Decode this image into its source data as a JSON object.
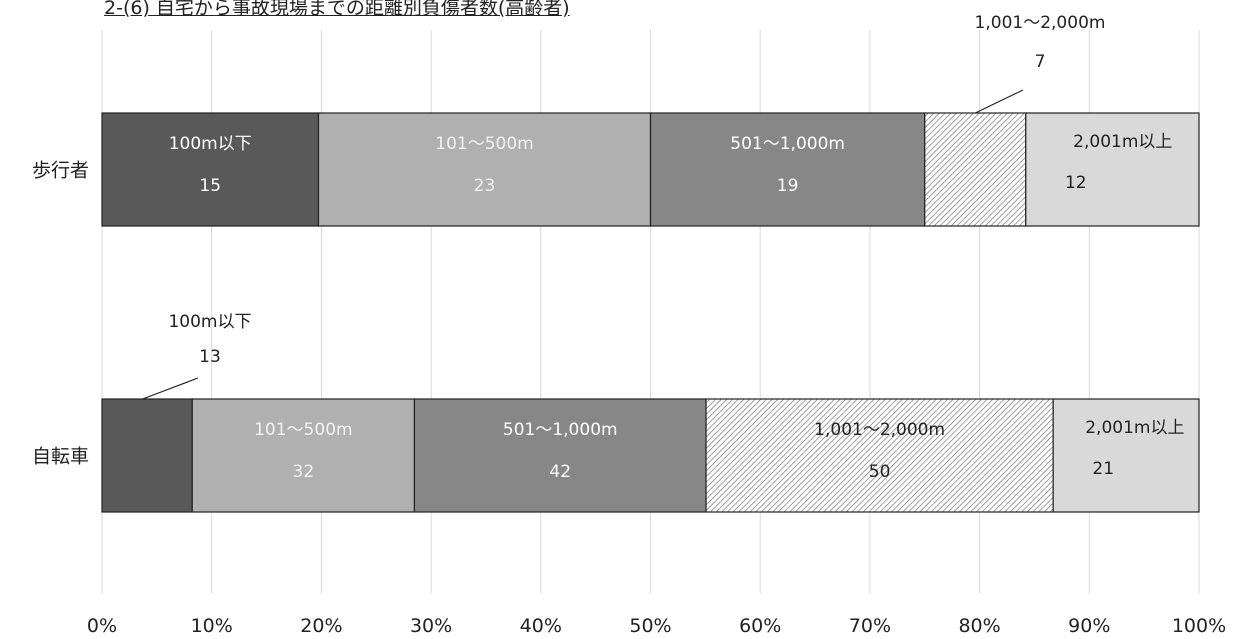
{
  "chart_data": {
    "type": "bar",
    "stacked": "percent",
    "orientation": "horizontal",
    "title": "2-(6) 自宅から事故現場までの距離別負傷者数(高齢者)",
    "categories": [
      "歩行者",
      "自転車"
    ],
    "series": [
      {
        "name": "100m以下",
        "values": [
          15,
          13
        ],
        "color": "#595959",
        "pattern": "solid"
      },
      {
        "name": "101～500m",
        "values": [
          23,
          32
        ],
        "color": "#b0b0b0",
        "pattern": "solid"
      },
      {
        "name": "501～1,000m",
        "values": [
          19,
          42
        ],
        "color": "#878787",
        "pattern": "solid"
      },
      {
        "name": "1,001～2,000m",
        "values": [
          7,
          50
        ],
        "color": "#ffffff",
        "pattern": "hatch"
      },
      {
        "name": "2,001m以上",
        "values": [
          12,
          21
        ],
        "color": "#d9d9d9",
        "pattern": "solid"
      }
    ],
    "xlim": [
      0,
      100
    ],
    "x_ticks": [
      "0%",
      "10%",
      "20%",
      "30%",
      "40%",
      "50%",
      "60%",
      "70%",
      "80%",
      "90%",
      "100%"
    ],
    "grid": true,
    "legend": "none"
  }
}
